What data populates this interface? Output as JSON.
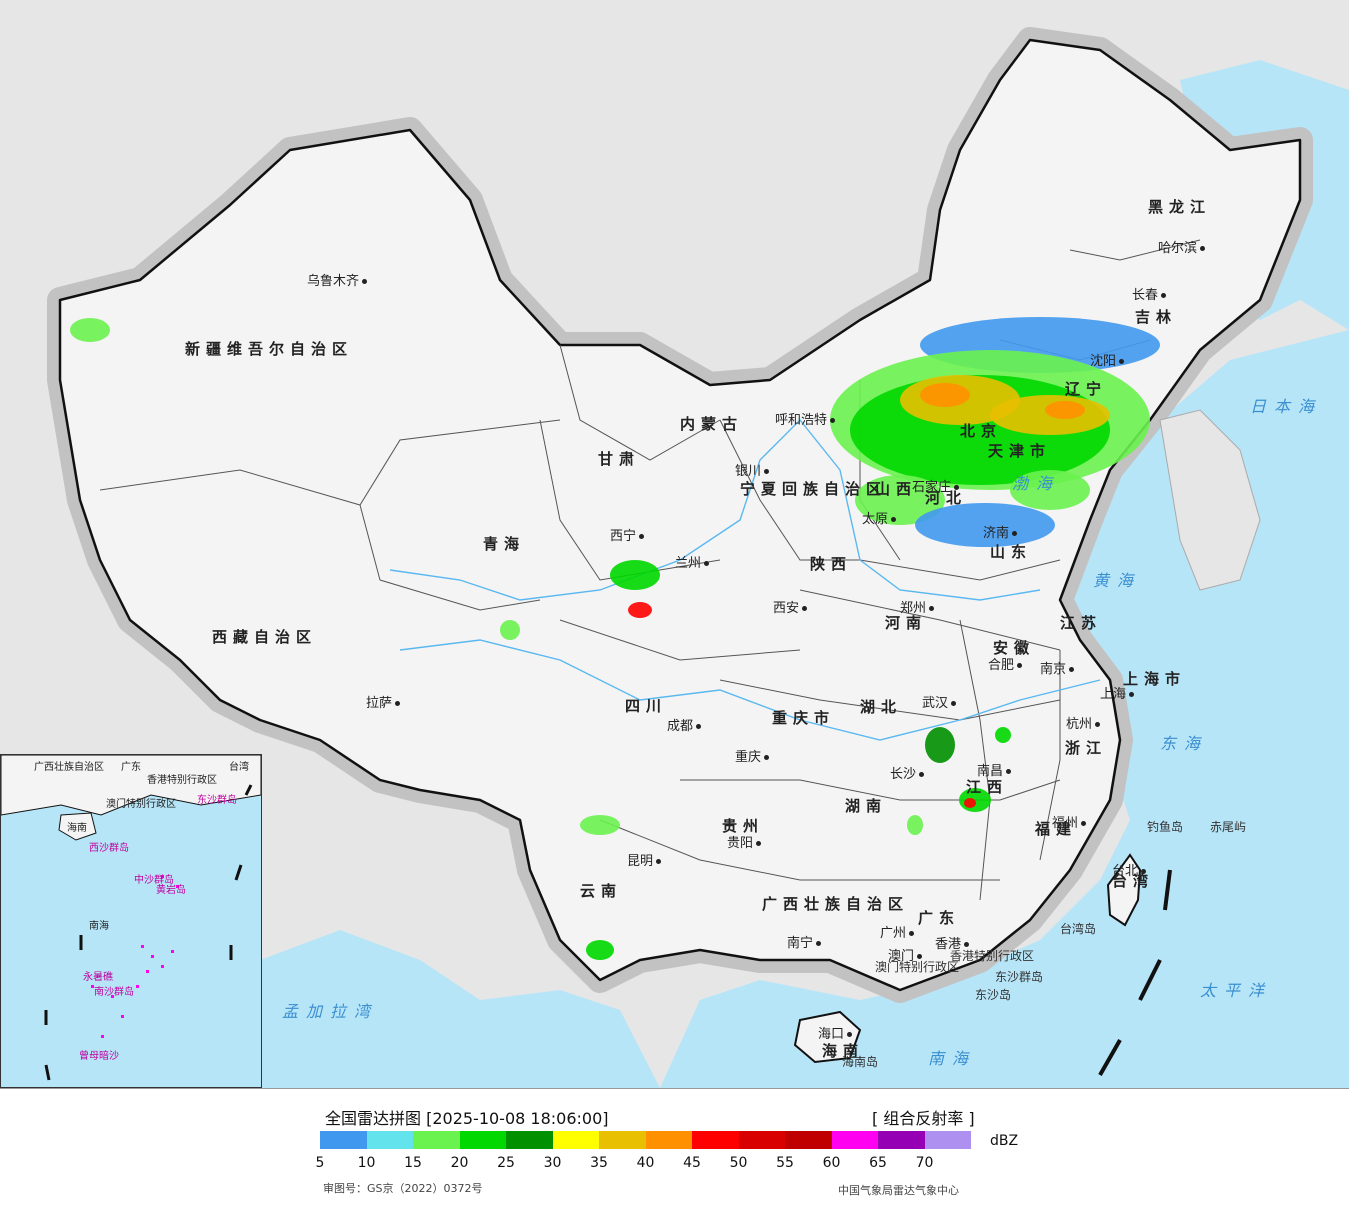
{
  "map": {
    "provinces": [
      "新疆维吾尔自治区",
      "西藏自治区",
      "青海",
      "甘肃",
      "内蒙古",
      "黑龙江",
      "吉林",
      "辽宁",
      "河北",
      "山西",
      "山东",
      "陕西",
      "河南",
      "江苏",
      "安徽",
      "湖北",
      "四川",
      "重庆市",
      "湖南",
      "江西",
      "浙江",
      "福建",
      "贵州",
      "云南",
      "广西壮族自治区",
      "广东",
      "海南",
      "台湾",
      "上海市",
      "宁夏回族自治区",
      "天津市",
      "北京"
    ],
    "cities": [
      "乌鲁木齐",
      "拉萨",
      "西宁",
      "兰州",
      "银川",
      "呼和浩特",
      "太原",
      "石家庄",
      "济南",
      "沈阳",
      "长春",
      "哈尔滨",
      "西安",
      "郑州",
      "南京",
      "合肥",
      "上海",
      "杭州",
      "武汉",
      "成都",
      "重庆",
      "长沙",
      "南昌",
      "福州",
      "贵阳",
      "昆明",
      "南宁",
      "广州",
      "香港",
      "澳门",
      "海口",
      "台北"
    ],
    "seas": [
      "日本海",
      "黄海",
      "东海",
      "太平洋",
      "南海",
      "渤海",
      "孟加拉湾"
    ],
    "islands": [
      "钓鱼岛",
      "赤尾屿",
      "台湾岛",
      "东沙群岛",
      "东沙岛",
      "海南岛"
    ],
    "special_regions": [
      "香港特别行政区",
      "澳门特别行政区"
    ]
  },
  "inset": {
    "labels": [
      "广西壮族自治区",
      "广东",
      "香港特别行政区",
      "澳门特别行政区",
      "台湾",
      "海南",
      "东沙群岛",
      "西沙群岛",
      "中沙群岛",
      "南海",
      "南沙群岛",
      "曾母暗沙",
      "黄岩岛",
      "永暑礁"
    ]
  },
  "legend": {
    "title": "全国雷达拼图 [2025-10-08 18:06:00]",
    "product": "[ 组合反射率 ]",
    "unit": "dBZ",
    "colors": [
      "#4199ef",
      "#63e4ed",
      "#6af24f",
      "#00d800",
      "#009000",
      "#ffff00",
      "#e8c000",
      "#ff9000",
      "#ff0000",
      "#d80000",
      "#c00000",
      "#ff00f0",
      "#9600b4",
      "#ad90f0"
    ],
    "ticks": [
      "5",
      "10",
      "15",
      "20",
      "25",
      "30",
      "35",
      "40",
      "45",
      "50",
      "55",
      "60",
      "65",
      "70"
    ],
    "review_number": "审图号：GS京（2022）0372号",
    "producer": "中国气象局雷达气象中心"
  }
}
